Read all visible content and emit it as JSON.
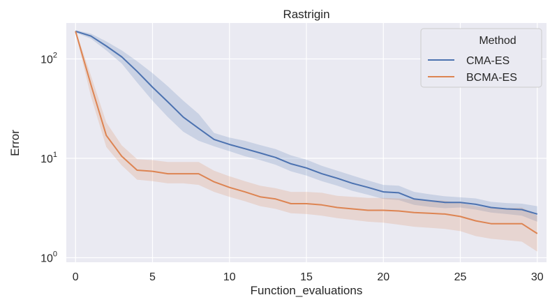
{
  "chart_data": {
    "type": "line",
    "title": "Rastrigin",
    "xlabel": "Function_evaluations",
    "ylabel": "Error",
    "yscale": "log",
    "xlim": [
      -0.6,
      30.6
    ],
    "ylim": [
      0.9,
      230
    ],
    "xticks": [
      0,
      5,
      10,
      15,
      20,
      25,
      30
    ],
    "xtick_labels": [
      "0",
      "5",
      "10",
      "15",
      "20",
      "25",
      "30"
    ],
    "yticks": [
      1,
      10,
      100
    ],
    "ytick_labels": [
      {
        "base": "10",
        "exp": "0"
      },
      {
        "base": "10",
        "exp": "1"
      },
      {
        "base": "10",
        "exp": "2"
      }
    ],
    "grid": true,
    "background": "#eaeaf2",
    "legend": {
      "title": "Method",
      "placement": "top-right"
    },
    "x": [
      0,
      1,
      2,
      3,
      4,
      5,
      6,
      7,
      8,
      9,
      10,
      11,
      12,
      13,
      14,
      15,
      16,
      17,
      18,
      19,
      20,
      21,
      22,
      23,
      24,
      25,
      26,
      27,
      28,
      29,
      30
    ],
    "series": [
      {
        "name": "CMA-ES",
        "color": "#4c72b0",
        "values": [
          190,
          170,
          135,
          105,
          75,
          52,
          37,
          26,
          20,
          15.5,
          13.8,
          12.5,
          11.3,
          10.2,
          8.8,
          8.0,
          7.0,
          6.3,
          5.6,
          5.1,
          4.6,
          4.5,
          3.9,
          3.75,
          3.6,
          3.6,
          3.45,
          3.2,
          3.1,
          3.05,
          2.75
        ],
        "lower": [
          185,
          160,
          122,
          90,
          58,
          38,
          26,
          18.5,
          15,
          13.2,
          11.8,
          10.5,
          9.6,
          8.6,
          7.4,
          6.7,
          5.9,
          5.3,
          4.7,
          4.3,
          3.9,
          3.8,
          3.4,
          3.25,
          3.15,
          3.2,
          3.05,
          2.85,
          2.75,
          2.65,
          2.3
        ],
        "upper": [
          195,
          180,
          150,
          122,
          95,
          72,
          53,
          38,
          28,
          18,
          16.2,
          15,
          13.6,
          12.4,
          10.7,
          9.7,
          8.4,
          7.5,
          6.7,
          6.0,
          5.4,
          5.3,
          4.6,
          4.35,
          4.15,
          4.05,
          3.95,
          3.65,
          3.55,
          3.5,
          3.3
        ]
      },
      {
        "name": "BCMA-ES",
        "color": "#dd8452",
        "values": [
          190,
          55,
          17,
          10.5,
          7.6,
          7.4,
          7.0,
          7.0,
          7.0,
          5.8,
          5.1,
          4.6,
          4.1,
          3.9,
          3.5,
          3.5,
          3.4,
          3.2,
          3.1,
          3.0,
          3.0,
          2.95,
          2.85,
          2.8,
          2.75,
          2.6,
          2.35,
          2.2,
          2.2,
          2.2,
          1.75
        ],
        "lower": [
          185,
          42,
          13,
          8.5,
          6.1,
          5.9,
          5.6,
          5.6,
          5.4,
          4.6,
          4.1,
          3.7,
          3.3,
          3.1,
          2.8,
          2.75,
          2.65,
          2.5,
          2.4,
          2.3,
          2.25,
          2.15,
          2.05,
          2.0,
          1.95,
          1.85,
          1.65,
          1.55,
          1.5,
          1.45,
          1.15
        ],
        "upper": [
          195,
          68,
          23,
          13.5,
          9.8,
          9.6,
          9.2,
          9.2,
          9.2,
          7.5,
          6.6,
          5.9,
          5.3,
          5.0,
          4.6,
          4.6,
          4.5,
          4.2,
          4.1,
          4.0,
          4.0,
          3.95,
          3.85,
          3.8,
          3.75,
          3.55,
          3.3,
          3.15,
          3.15,
          3.2,
          2.65
        ]
      }
    ]
  }
}
